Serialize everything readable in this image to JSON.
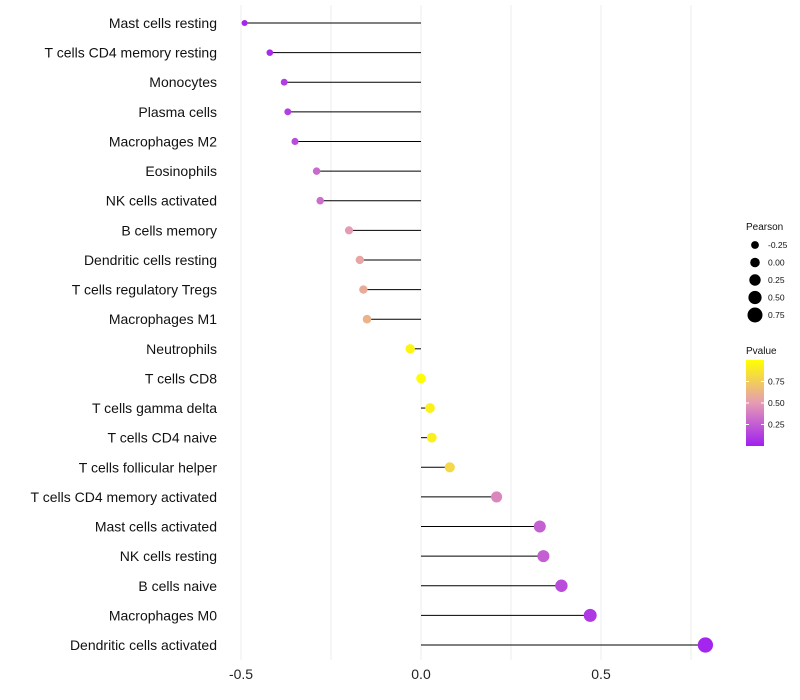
{
  "chart_data": {
    "type": "lollipop",
    "title": "",
    "xlabel": "",
    "ylabel": "",
    "xlim": [
      -0.5,
      0.8
    ],
    "xticks": [
      -0.5,
      0.0,
      0.5
    ],
    "xtick_labels": [
      "-0.5",
      "0.0",
      "0.5"
    ],
    "grid": true,
    "legend_position": "right",
    "categories": [
      "Mast cells resting",
      "T cells CD4 memory resting",
      "Monocytes",
      "Plasma cells",
      "Macrophages M2",
      "Eosinophils",
      "NK cells activated",
      "B cells memory",
      "Dendritic cells resting",
      "T cells regulatory  Tregs ",
      "Macrophages M1",
      "Neutrophils",
      "T cells CD8",
      "T cells gamma delta",
      "T cells CD4 naive",
      "T cells follicular helper",
      "T cells CD4 memory activated",
      "Mast cells activated",
      "NK cells resting",
      "B cells naive",
      "Macrophages M0",
      "Dendritic cells activated"
    ],
    "pearson": [
      -0.49,
      -0.42,
      -0.38,
      -0.37,
      -0.35,
      -0.29,
      -0.28,
      -0.2,
      -0.17,
      -0.16,
      -0.15,
      -0.03,
      0.0,
      0.025,
      0.03,
      0.08,
      0.21,
      0.33,
      0.34,
      0.39,
      0.47,
      0.79
    ],
    "pvalue": [
      0.02,
      0.05,
      0.12,
      0.13,
      0.18,
      0.3,
      0.32,
      0.5,
      0.55,
      0.58,
      0.62,
      0.95,
      0.99,
      0.93,
      0.92,
      0.8,
      0.42,
      0.26,
      0.25,
      0.18,
      0.1,
      0.02
    ],
    "legend_size": {
      "title": "Pearson",
      "values": [
        -0.25,
        0.0,
        0.25,
        0.5,
        0.75
      ],
      "labels": [
        "-0.25",
        "0.00",
        "0.25",
        "0.50",
        "0.75"
      ]
    },
    "legend_color": {
      "title": "Pvalue",
      "ticks": [
        0.25,
        0.5,
        0.75
      ],
      "labels": [
        "0.25",
        "0.50",
        "0.75"
      ],
      "range": [
        0.0,
        1.0
      ],
      "low_color": "#a020f0",
      "mid_color": "#e59bb5",
      "high_color": "#ffff00"
    },
    "stem_color": "#000000"
  }
}
